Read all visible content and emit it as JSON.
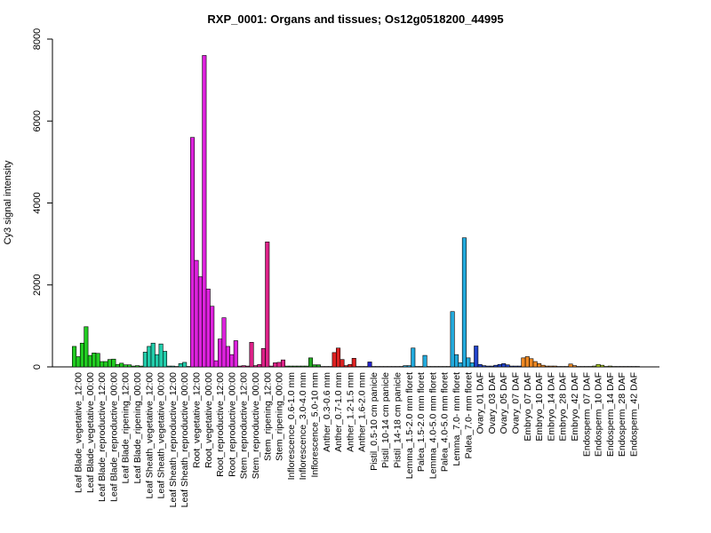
{
  "chart_data": {
    "type": "bar",
    "title": "RXP_0001: Organs and tissues; Os12g0518200_44995",
    "xlabel": "",
    "ylabel": "Cy3 signal intensity",
    "ylim": [
      0,
      8000
    ],
    "yticks": [
      0,
      2000,
      4000,
      6000,
      8000
    ],
    "grid": false,
    "groups": [
      {
        "label": "Leaf Blade_vegetative_12:00",
        "color": "#22cc22",
        "values": [
          500,
          250,
          580
        ]
      },
      {
        "label": "Leaf Blade_vegetative_00:00",
        "color": "#22cc22",
        "values": [
          980,
          280,
          340
        ]
      },
      {
        "label": "Leaf Blade_reproductive_12:00",
        "color": "#22cc22",
        "values": [
          330,
          130,
          130
        ]
      },
      {
        "label": "Leaf Blade_reproductive_00:00",
        "color": "#22cc22",
        "values": [
          180,
          190,
          60
        ]
      },
      {
        "label": "Leaf Blade_ripening_12:00",
        "color": "#22cc22",
        "values": [
          90,
          50,
          50
        ]
      },
      {
        "label": "Leaf Blade_ripening_00:00",
        "color": "#22cc22",
        "values": [
          20,
          30,
          20
        ]
      },
      {
        "label": "Leaf Sheath_vegetative_12:00",
        "color": "#22ccaa",
        "values": [
          360,
          500,
          580
        ]
      },
      {
        "label": "Leaf Sheath_vegetative_00:00",
        "color": "#22ccaa",
        "values": [
          300,
          560,
          380
        ]
      },
      {
        "label": "Leaf Sheath_reproductive_12:00",
        "color": "#22ccaa",
        "values": [
          20,
          20,
          10
        ]
      },
      {
        "label": "Leaf Sheath_reproductive_00:00",
        "color": "#22ccaa",
        "values": [
          80,
          110,
          10
        ]
      },
      {
        "label": "Root_vegetative_12:00",
        "color": "#dd22dd",
        "values": [
          5600,
          2600,
          2200
        ]
      },
      {
        "label": "Root_vegetative_00:00",
        "color": "#dd22dd",
        "values": [
          7600,
          1900,
          1480
        ]
      },
      {
        "label": "Root_reproductive_12:00",
        "color": "#dd22dd",
        "values": [
          150,
          680,
          1200
        ]
      },
      {
        "label": "Root_reproductive_00:00",
        "color": "#dd22dd",
        "values": [
          500,
          300,
          640
        ]
      },
      {
        "label": "Stem_reproductive_12:00",
        "color": "#dd2288",
        "values": [
          20,
          30,
          20
        ]
      },
      {
        "label": "Stem_reproductive_00:00",
        "color": "#dd2288",
        "values": [
          600,
          30,
          60
        ]
      },
      {
        "label": "Stem_ripening_12:00",
        "color": "#dd2288",
        "values": [
          450,
          3050,
          20
        ]
      },
      {
        "label": "Stem_ripening_00:00",
        "color": "#dd2288",
        "values": [
          100,
          110,
          170
        ]
      },
      {
        "label": "Inflorescence_0.6-1.0 mm",
        "color": "#22aa22",
        "values": [
          20,
          20,
          20
        ]
      },
      {
        "label": "Inflorescence_3.0-4.0 mm",
        "color": "#22aa22",
        "values": [
          20,
          20,
          20
        ]
      },
      {
        "label": "Inflorescence_5.0-10 mm",
        "color": "#22aa22",
        "values": [
          220,
          50,
          50
        ]
      },
      {
        "label": "Anther_0.3-0.6 mm",
        "color": "#dd2222",
        "values": [
          10,
          10,
          10
        ]
      },
      {
        "label": "Anther_0.7-1.0 mm",
        "color": "#dd2222",
        "values": [
          350,
          460,
          180
        ]
      },
      {
        "label": "Anther_1.2-1.5 mm",
        "color": "#dd2222",
        "values": [
          30,
          60,
          210
        ]
      },
      {
        "label": "Anther_1.6-2.0 mm",
        "color": "#dd2222",
        "values": [
          10,
          10,
          10
        ]
      },
      {
        "label": "Pistil_0.5-10 cm panicle",
        "color": "#2222cc",
        "values": [
          120,
          10,
          10
        ]
      },
      {
        "label": "Pistil_10-14 cm panicle",
        "color": "#2222cc",
        "values": [
          10,
          10,
          10
        ]
      },
      {
        "label": "Pistil_14-18 cm panicle",
        "color": "#2222cc",
        "values": [
          10,
          10,
          10
        ]
      },
      {
        "label": "Lemma_1.5-2.0 mm floret",
        "color": "#22aadd",
        "values": [
          30,
          30,
          460
        ]
      },
      {
        "label": "Palea_1.5-2.0 mm floret",
        "color": "#22aadd",
        "values": [
          10,
          10,
          280
        ]
      },
      {
        "label": "Lemma_4.0-5.0 mm floret",
        "color": "#22aadd",
        "values": [
          10,
          10,
          10
        ]
      },
      {
        "label": "Palea_4.0-5.0 mm floret",
        "color": "#22aadd",
        "values": [
          10,
          10,
          10
        ]
      },
      {
        "label": "Lemma_7.0- mm floret",
        "color": "#22aadd",
        "values": [
          1350,
          300,
          100
        ]
      },
      {
        "label": "Palea_7.0- mm floret",
        "color": "#22aadd",
        "values": [
          3150,
          220,
          100
        ]
      },
      {
        "label": "Ovary_01 DAF",
        "color": "#2244cc",
        "values": [
          510,
          60,
          30
        ]
      },
      {
        "label": "Ovary_03 DAF",
        "color": "#2244cc",
        "values": [
          20,
          20,
          40
        ]
      },
      {
        "label": "Ovary_05 DAF",
        "color": "#2244cc",
        "values": [
          60,
          80,
          50
        ]
      },
      {
        "label": "Ovary_07 DAF",
        "color": "#2244cc",
        "values": [
          20,
          20,
          20
        ]
      },
      {
        "label": "Embryo_07 DAF",
        "color": "#ee8822",
        "values": [
          220,
          250,
          200
        ]
      },
      {
        "label": "Embryo_10 DAF",
        "color": "#ee8822",
        "values": [
          130,
          80,
          40
        ]
      },
      {
        "label": "Embryo_14 DAF",
        "color": "#ee8822",
        "values": [
          20,
          20,
          20
        ]
      },
      {
        "label": "Embryo_28 DAF",
        "color": "#ee8822",
        "values": [
          10,
          10,
          10
        ]
      },
      {
        "label": "Embryo_42 DAF",
        "color": "#ee8822",
        "values": [
          70,
          30,
          10
        ]
      },
      {
        "label": "Endosperm_07 DAF",
        "color": "#aacc22",
        "values": [
          10,
          10,
          10
        ]
      },
      {
        "label": "Endosperm_10 DAF",
        "color": "#aacc22",
        "values": [
          20,
          60,
          40
        ]
      },
      {
        "label": "Endosperm_14 DAF",
        "color": "#aacc22",
        "values": [
          10,
          20,
          10
        ]
      },
      {
        "label": "Endosperm_28 DAF",
        "color": "#aacc22",
        "values": [
          10,
          10,
          10
        ]
      },
      {
        "label": "Endosperm_42 DAF",
        "color": "#aacc22",
        "values": [
          10,
          10,
          10
        ]
      }
    ]
  }
}
